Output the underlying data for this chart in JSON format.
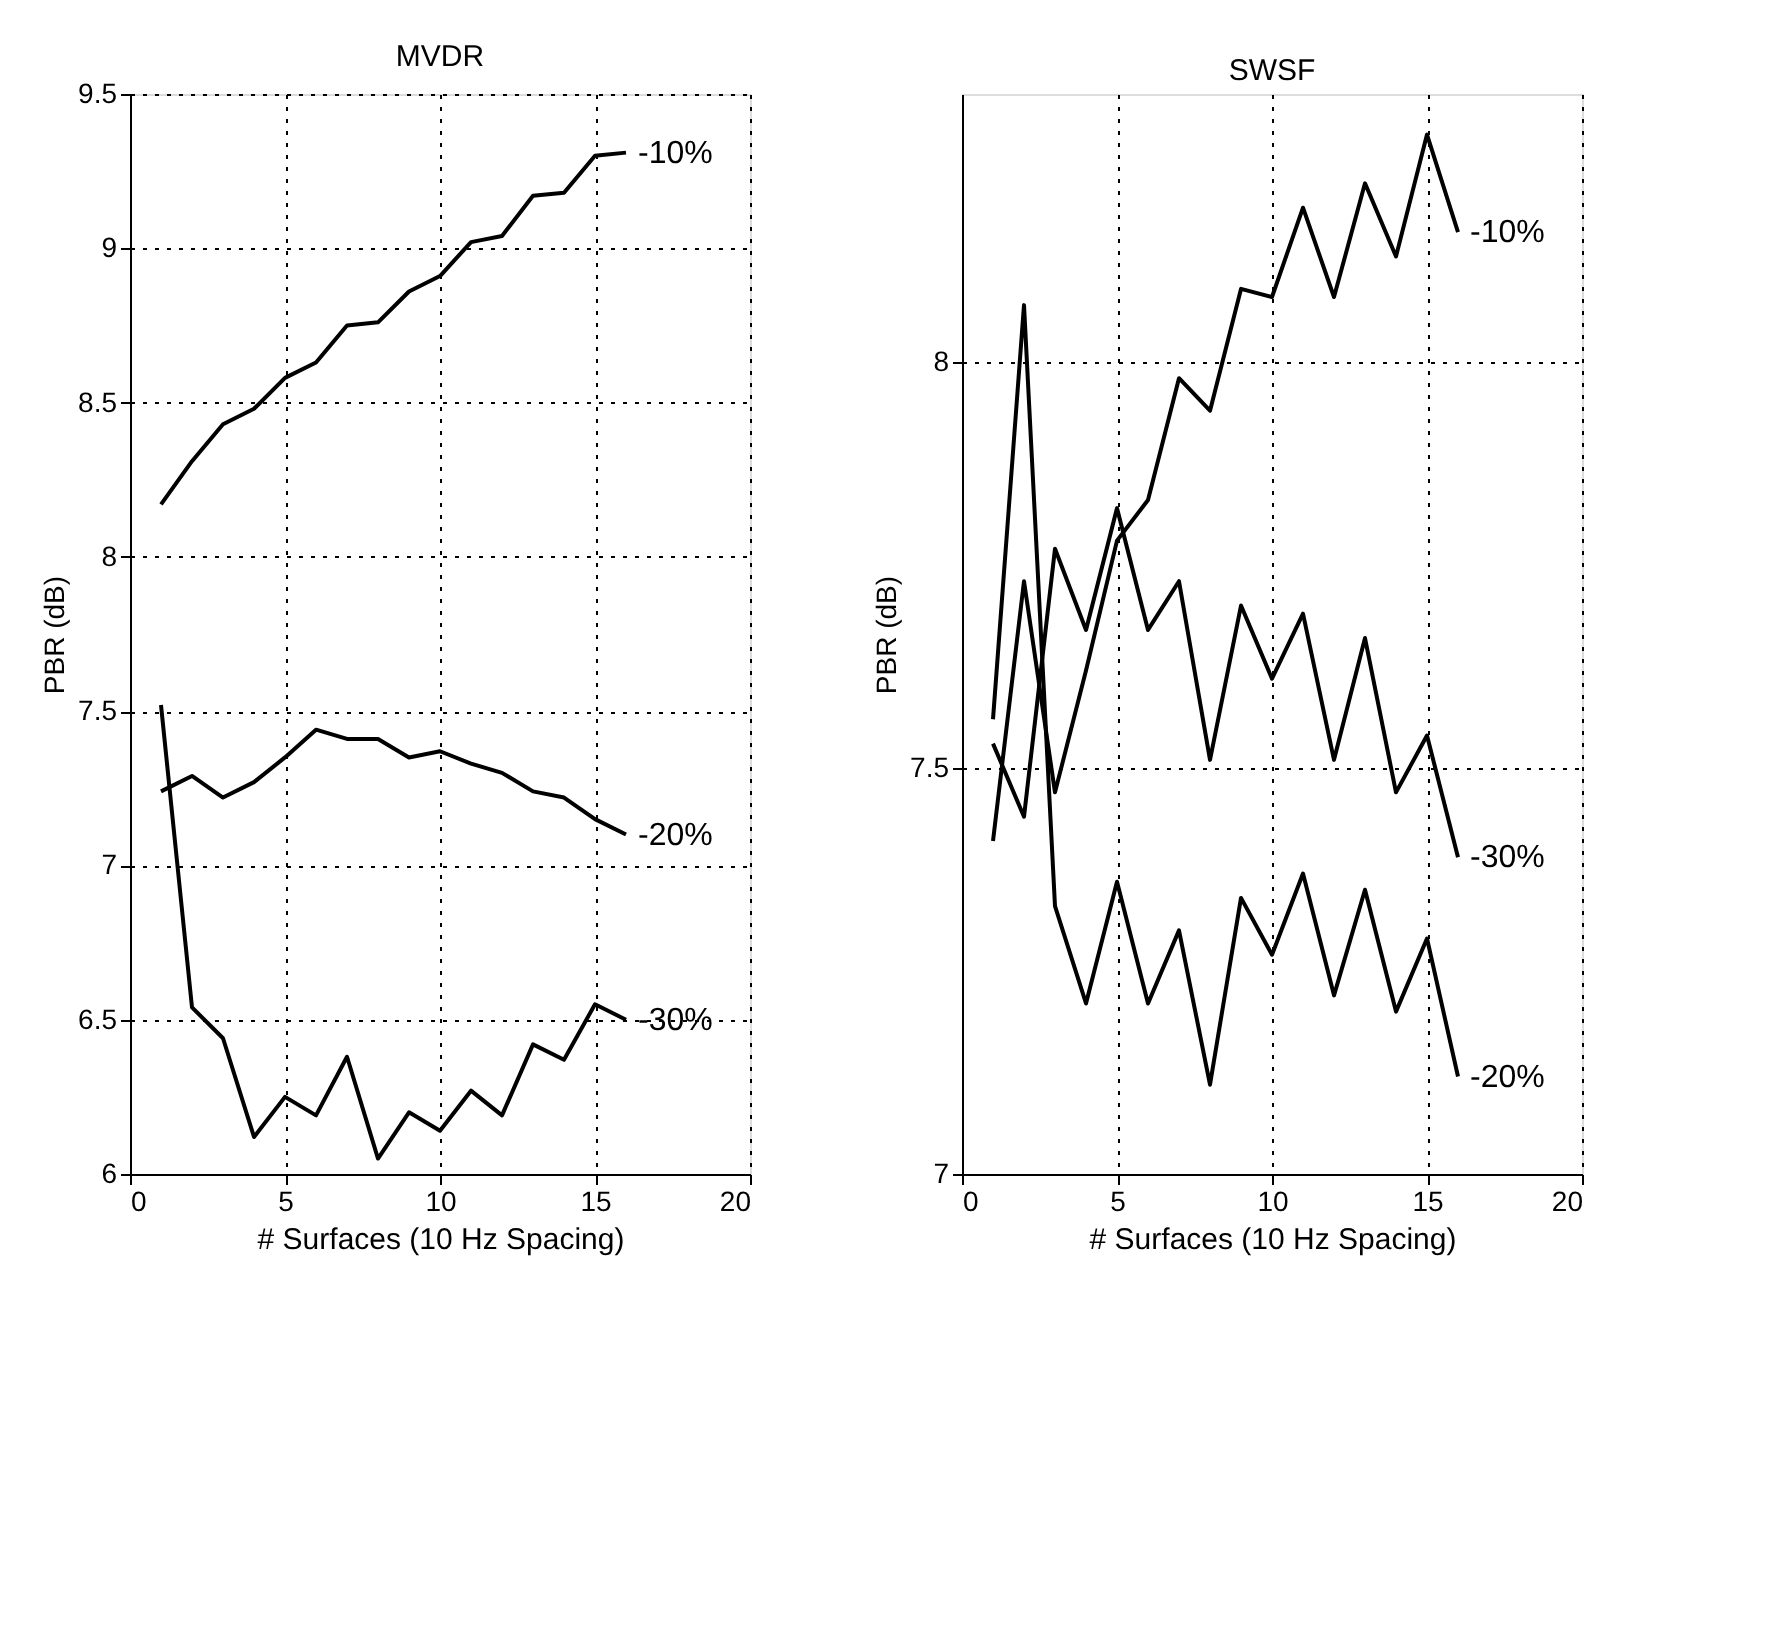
{
  "chart_data": [
    {
      "type": "line",
      "title": "MVDR",
      "xlabel": "# Surfaces (10 Hz Spacing)",
      "ylabel": "PBR (dB)",
      "x": [
        1,
        2,
        3,
        4,
        5,
        6,
        7,
        8,
        9,
        10,
        11,
        12,
        13,
        14,
        15,
        16
      ],
      "series": [
        {
          "name": "-10%",
          "color": "#000000",
          "values": [
            8.17,
            8.31,
            8.43,
            8.48,
            8.58,
            8.63,
            8.75,
            8.76,
            8.86,
            8.91,
            9.02,
            9.04,
            9.17,
            9.18,
            9.3,
            9.31
          ]
        },
        {
          "name": "-20%",
          "color": "#000000",
          "values": [
            7.24,
            7.29,
            7.22,
            7.27,
            7.35,
            7.44,
            7.41,
            7.41,
            7.35,
            7.37,
            7.33,
            7.3,
            7.24,
            7.22,
            7.15,
            7.1
          ]
        },
        {
          "name": "-30%",
          "color": "#000000",
          "values": [
            7.52,
            6.54,
            6.44,
            6.12,
            6.25,
            6.19,
            6.38,
            6.05,
            6.2,
            6.14,
            6.27,
            6.19,
            6.42,
            6.37,
            6.55,
            6.5
          ]
        }
      ],
      "xlim": [
        0,
        20
      ],
      "xticks": [
        0,
        5,
        10,
        15,
        20
      ],
      "ylim": [
        6,
        9.5
      ],
      "yticks": [
        6,
        6.5,
        7,
        7.5,
        8,
        8.5,
        9,
        9.5
      ],
      "grid": true,
      "line_style": "solid",
      "marker": "none"
    },
    {
      "type": "line",
      "title": "SWSF",
      "xlabel": "# Surfaces (10 Hz Spacing)",
      "ylabel": "PBR (dB)",
      "x": [
        1,
        2,
        3,
        4,
        5,
        6,
        7,
        8,
        9,
        10,
        11,
        12,
        13,
        14,
        15,
        16
      ],
      "series": [
        {
          "name": "-10%",
          "color": "#000000",
          "values": [
            7.41,
            7.73,
            7.47,
            7.62,
            7.78,
            7.83,
            7.98,
            7.94,
            8.09,
            8.08,
            8.19,
            8.08,
            8.22,
            8.13,
            8.28,
            8.16
          ]
        },
        {
          "name": "-20%",
          "color": "#000000",
          "values": [
            7.56,
            8.07,
            7.33,
            7.21,
            7.36,
            7.21,
            7.3,
            7.11,
            7.34,
            7.27,
            7.37,
            7.22,
            7.35,
            7.2,
            7.29,
            7.12
          ]
        },
        {
          "name": "-30%",
          "color": "#000000",
          "values": [
            7.53,
            7.44,
            7.77,
            7.67,
            7.82,
            7.67,
            7.73,
            7.51,
            7.7,
            7.61,
            7.69,
            7.51,
            7.66,
            7.47,
            7.54,
            7.39
          ]
        }
      ],
      "xlim": [
        0,
        20
      ],
      "xticks": [
        0,
        5,
        10,
        15,
        20
      ],
      "ylim": [
        7,
        8.33
      ],
      "yticks": [
        7,
        7.5,
        8
      ],
      "grid": true,
      "line_style": "solid",
      "marker": "none"
    }
  ]
}
